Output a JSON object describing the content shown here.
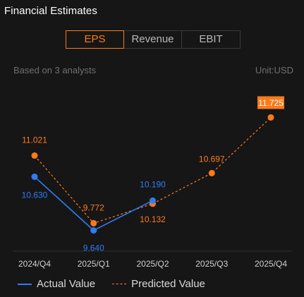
{
  "header": {
    "title": "Financial Estimates"
  },
  "tabs": [
    {
      "label": "EPS",
      "active": true
    },
    {
      "label": "Revenue",
      "active": false
    },
    {
      "label": "EBIT",
      "active": false
    }
  ],
  "meta": {
    "analysts": "Based on 3 analysts",
    "unit": "Unit:USD"
  },
  "colors": {
    "actual": "#2f7cf6",
    "predicted": "#ff7a1a",
    "tick": "#cfcfcf",
    "axis": "#2e2e2e"
  },
  "legend": {
    "actual_label": "Actual Value",
    "predicted_label": "Predicted Value"
  },
  "chart_data": {
    "type": "line",
    "categories": [
      "2024/Q4",
      "2025/Q1",
      "2025/Q2",
      "2025/Q3",
      "2025/Q4"
    ],
    "series": [
      {
        "name": "Actual Value",
        "values": [
          10.63,
          9.64,
          10.19,
          null,
          null
        ],
        "labels": [
          "10.630",
          "9.640",
          "10.190",
          null,
          null
        ],
        "style": "solid"
      },
      {
        "name": "Predicted Value",
        "values": [
          11.021,
          9.772,
          10.132,
          10.697,
          11.725
        ],
        "labels": [
          "11.021",
          "9.772",
          "10.132",
          "10.697",
          "11.725"
        ],
        "style": "dashed",
        "highlight_last": true
      }
    ],
    "title": "",
    "xlabel": "",
    "ylabel": "",
    "ylim": [
      9.4,
      12.2
    ],
    "grid": false,
    "legend": "bottom-left"
  }
}
